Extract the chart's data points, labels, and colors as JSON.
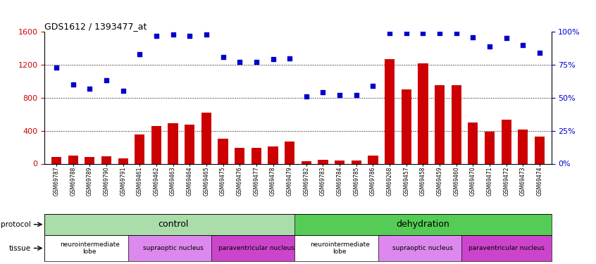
{
  "title": "GDS1612 / 1393477_at",
  "samples": [
    "GSM69787",
    "GSM69788",
    "GSM69789",
    "GSM69790",
    "GSM69791",
    "GSM69461",
    "GSM69462",
    "GSM69463",
    "GSM69464",
    "GSM69465",
    "GSM69475",
    "GSM69476",
    "GSM69477",
    "GSM69478",
    "GSM69479",
    "GSM69782",
    "GSM69783",
    "GSM69784",
    "GSM69785",
    "GSM69786",
    "GSM69268",
    "GSM69457",
    "GSM69458",
    "GSM69459",
    "GSM69460",
    "GSM69470",
    "GSM69471",
    "GSM69472",
    "GSM69473",
    "GSM69474"
  ],
  "count": [
    80,
    100,
    80,
    90,
    60,
    350,
    460,
    490,
    470,
    620,
    300,
    190,
    195,
    205,
    270,
    30,
    50,
    40,
    35,
    100,
    1270,
    900,
    1220,
    950,
    950,
    500,
    390,
    530,
    410,
    330
  ],
  "percentile": [
    73,
    60,
    57,
    63,
    55,
    83,
    97,
    98,
    97,
    98,
    81,
    77,
    77,
    79,
    80,
    51,
    54,
    52,
    52,
    59,
    99,
    99,
    99,
    99,
    99,
    96,
    89,
    95,
    90,
    84
  ],
  "bar_color": "#cc0000",
  "dot_color": "#0000cc",
  "left_ylim": [
    0,
    1600
  ],
  "right_ylim": [
    0,
    100
  ],
  "left_yticks": [
    0,
    400,
    800,
    1200,
    1600
  ],
  "right_yticks": [
    0,
    25,
    50,
    75,
    100
  ],
  "grid_values": [
    400,
    800,
    1200
  ],
  "protocol_spans": [
    {
      "label": "control",
      "start": 0,
      "end": 15,
      "color": "#aaddaa"
    },
    {
      "label": "dehydration",
      "start": 15,
      "end": 30,
      "color": "#55cc55"
    }
  ],
  "tissue_spans": [
    {
      "label": "neurointermediate\nlobe",
      "start": 0,
      "end": 5,
      "color": "#ffffff"
    },
    {
      "label": "supraoptic nucleus",
      "start": 5,
      "end": 10,
      "color": "#dd88ee"
    },
    {
      "label": "paraventricular nucleus",
      "start": 10,
      "end": 15,
      "color": "#cc44cc"
    },
    {
      "label": "neurointermediate\nlobe",
      "start": 15,
      "end": 20,
      "color": "#ffffff"
    },
    {
      "label": "supraoptic nucleus",
      "start": 20,
      "end": 25,
      "color": "#dd88ee"
    },
    {
      "label": "paraventricular nucleus",
      "start": 25,
      "end": 30,
      "color": "#cc44cc"
    }
  ],
  "background_color": "#ffffff"
}
